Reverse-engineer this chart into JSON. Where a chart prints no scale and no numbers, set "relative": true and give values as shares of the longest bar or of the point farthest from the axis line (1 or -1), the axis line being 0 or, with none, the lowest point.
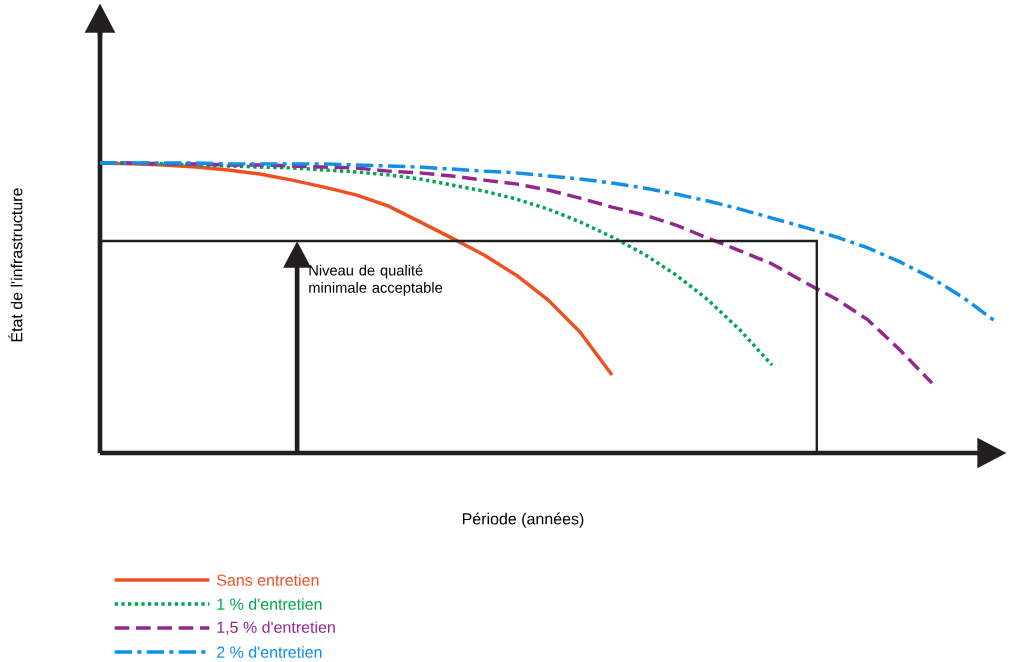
{
  "chart_data": {
    "type": "line",
    "relative": true,
    "xlabel": "Période (années)",
    "ylabel": "État de l'infrastructure",
    "legend": "bottom left",
    "categories": [
      null,
      null,
      null,
      null,
      null,
      null,
      null,
      null,
      null,
      null,
      null,
      null,
      null,
      null,
      null,
      null,
      null,
      null,
      null,
      null,
      null,
      null,
      null,
      null,
      null,
      null,
      null,
      null,
      null
    ],
    "series": [
      {
        "name": "Sans entretien",
        "color": "#f04e23",
        "line_style": "solid",
        "values": [
          1.0,
          0.997,
          0.993,
          0.986,
          0.976,
          0.962,
          0.941,
          0.917,
          0.89,
          0.852,
          0.797,
          0.741,
          0.683,
          0.614,
          0.528,
          0.417,
          0.269,
          null,
          null,
          null,
          null,
          null,
          null,
          null,
          null,
          null,
          null,
          null,
          null
        ]
      },
      {
        "name": "1 % d'entretien",
        "color": "#00a651",
        "line_style": "dotted",
        "values": [
          1.0,
          1.0,
          0.997,
          0.993,
          0.99,
          0.986,
          0.983,
          0.976,
          0.969,
          0.959,
          0.945,
          0.924,
          0.903,
          0.876,
          0.841,
          0.797,
          0.745,
          0.686,
          0.614,
          0.528,
          0.424,
          0.303,
          null,
          null,
          null,
          null,
          null,
          null,
          null
        ]
      },
      {
        "name": "1,5 % d'entretien",
        "color": "#92278f",
        "line_style": "dashed",
        "values": [
          1.0,
          1.0,
          0.997,
          0.997,
          0.993,
          0.993,
          0.99,
          0.986,
          0.983,
          0.972,
          0.966,
          0.955,
          0.941,
          0.928,
          0.907,
          0.879,
          0.848,
          0.821,
          0.786,
          0.741,
          0.697,
          0.652,
          0.59,
          0.531,
          0.459,
          0.355,
          0.241,
          null,
          null
        ]
      },
      {
        "name": "2 % d'entretien",
        "color": "#0f8fe6",
        "line_style": "dashdot",
        "values": [
          1.0,
          1.0,
          1.0,
          1.0,
          0.997,
          0.997,
          0.997,
          0.997,
          0.993,
          0.99,
          0.986,
          0.979,
          0.972,
          0.966,
          0.955,
          0.945,
          0.931,
          0.914,
          0.893,
          0.869,
          0.841,
          0.81,
          0.779,
          0.745,
          0.707,
          0.659,
          0.603,
          0.534,
          0.452
        ]
      }
    ],
    "ref_lines": [
      {
        "axis": "y",
        "value": 0.731,
        "color": "#231f20"
      }
    ],
    "annotations": [
      {
        "text": "Niveau de qualité minimale acceptable",
        "y": 0.731
      }
    ]
  }
}
